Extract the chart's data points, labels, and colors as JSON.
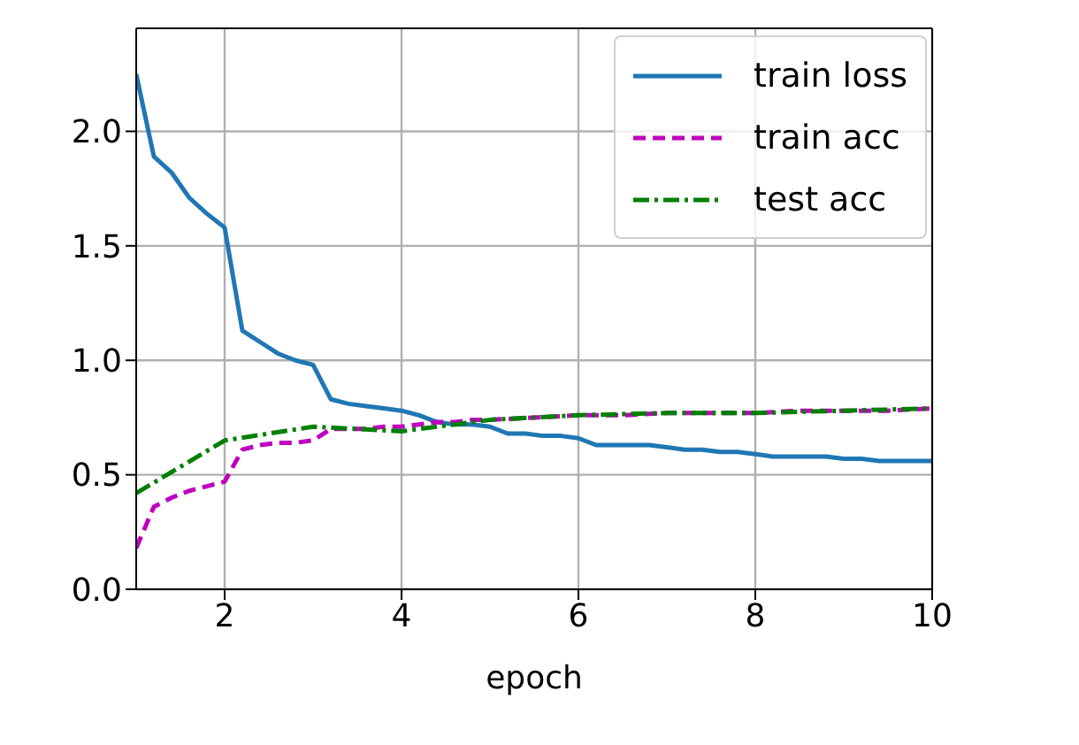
{
  "chart_data": {
    "type": "line",
    "xlabel": "epoch",
    "xlim": [
      1,
      10
    ],
    "xticks": [
      2,
      4,
      6,
      8,
      10
    ],
    "ylim": [
      0,
      2.45
    ],
    "yticks": [
      {
        "value": 0,
        "label": "0.0"
      },
      0.5,
      {
        "value": 1,
        "label": "1.0"
      },
      1.5,
      {
        "value": 2,
        "label": "2.0"
      }
    ],
    "grid": true,
    "legend": "top right",
    "series": [
      {
        "name": "train loss",
        "color": "#1f77b4",
        "line_style": "solid",
        "x": [
          1,
          1.2,
          1.4,
          1.6,
          1.8,
          2,
          2.2,
          2.4,
          2.6,
          2.8,
          3,
          3.2,
          3.4,
          3.6,
          3.8,
          4,
          4.2,
          4.4,
          4.6,
          4.8,
          5,
          5.2,
          5.4,
          5.6,
          5.8,
          6,
          6.2,
          6.4,
          6.6,
          6.8,
          7,
          7.2,
          7.4,
          7.6,
          7.8,
          8,
          8.2,
          8.4,
          8.6,
          8.8,
          9,
          9.2,
          9.4,
          9.6,
          9.8,
          10
        ],
        "values": [
          2.25,
          1.89,
          1.82,
          1.71,
          1.64,
          1.58,
          1.13,
          1.08,
          1.03,
          1.0,
          0.98,
          0.83,
          0.81,
          0.8,
          0.79,
          0.78,
          0.76,
          0.73,
          0.72,
          0.72,
          0.71,
          0.68,
          0.68,
          0.67,
          0.67,
          0.66,
          0.63,
          0.63,
          0.63,
          0.63,
          0.62,
          0.61,
          0.61,
          0.6,
          0.6,
          0.59,
          0.58,
          0.58,
          0.58,
          0.58,
          0.57,
          0.57,
          0.56,
          0.56,
          0.56,
          0.56
        ]
      },
      {
        "name": "train acc",
        "color": "#bf00bf",
        "line_style": "dashed",
        "x": [
          1,
          1.2,
          1.4,
          1.6,
          1.8,
          2,
          2.2,
          2.4,
          2.6,
          2.8,
          3,
          3.2,
          3.4,
          3.6,
          3.8,
          4,
          4.2,
          4.4,
          4.6,
          4.8,
          5,
          5.5,
          6,
          6.5,
          7,
          7.5,
          8,
          8.5,
          9,
          9.5,
          10
        ],
        "values": [
          0.18,
          0.36,
          0.4,
          0.43,
          0.45,
          0.47,
          0.61,
          0.63,
          0.64,
          0.64,
          0.65,
          0.7,
          0.7,
          0.7,
          0.71,
          0.71,
          0.72,
          0.73,
          0.73,
          0.74,
          0.74,
          0.75,
          0.76,
          0.76,
          0.77,
          0.77,
          0.77,
          0.78,
          0.78,
          0.78,
          0.79
        ]
      },
      {
        "name": "test acc",
        "color": "#008000",
        "line_style": "dashdot",
        "x": [
          1,
          2,
          3,
          4,
          5,
          6,
          7,
          8,
          9,
          10
        ],
        "values": [
          0.42,
          0.65,
          0.71,
          0.69,
          0.74,
          0.76,
          0.77,
          0.77,
          0.78,
          0.79
        ]
      }
    ]
  }
}
